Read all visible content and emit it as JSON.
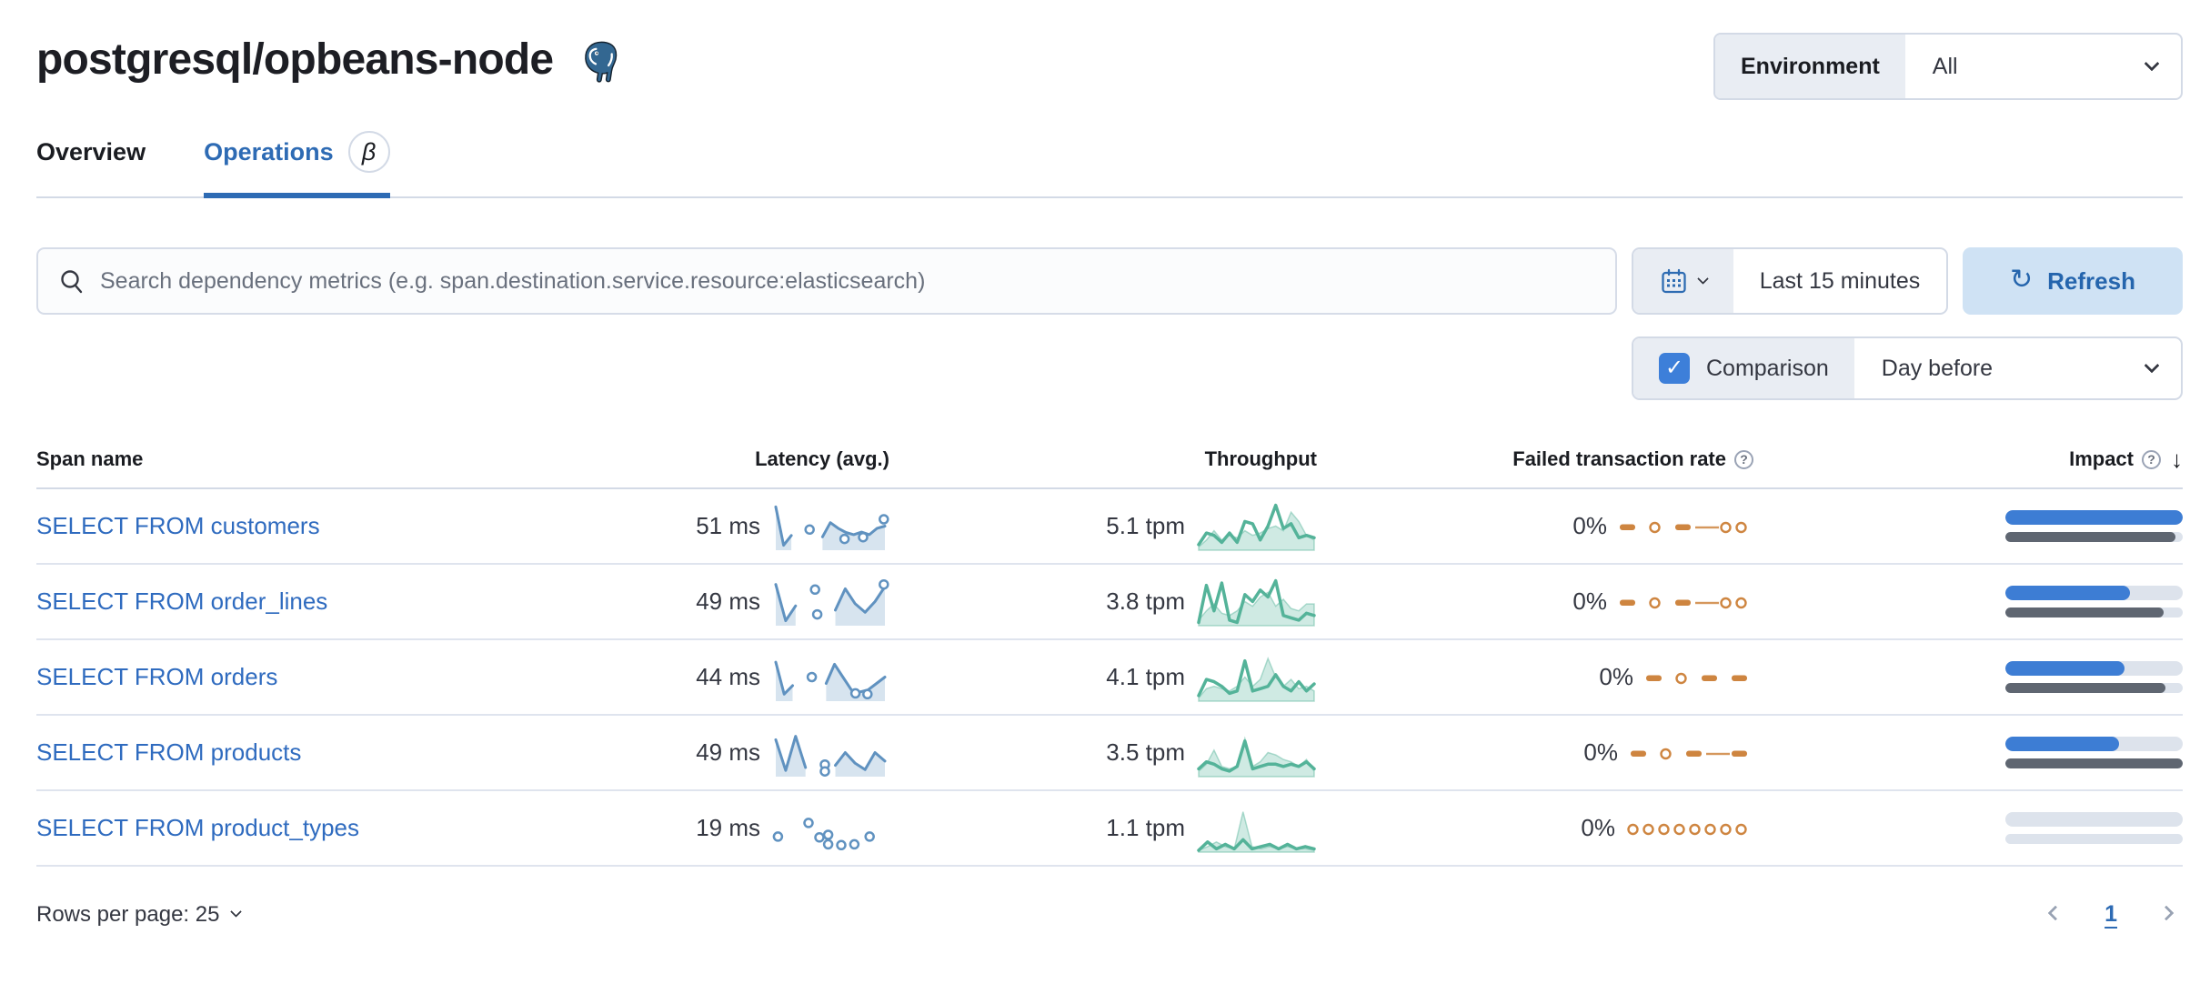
{
  "page": {
    "title": "postgresql/opbeans-node"
  },
  "environment": {
    "label": "Environment",
    "value": "All"
  },
  "tabs": [
    {
      "label": "Overview",
      "active": false
    },
    {
      "label": "Operations",
      "active": true,
      "badge": "β"
    }
  ],
  "controls": {
    "search_placeholder": "Search dependency metrics (e.g. span.destination.service.resource:elasticsearch)",
    "time_range": "Last 15 minutes",
    "refresh_label": "Refresh",
    "refresh_glyph": "↻",
    "comparison_label": "Comparison",
    "comparison_checked": "✓",
    "comparison_value": "Day before"
  },
  "table": {
    "columns": [
      "Span name",
      "Latency (avg.)",
      "Throughput",
      "Failed transaction rate",
      "Impact"
    ],
    "help_glyph": "?",
    "sort_glyph": "↓",
    "rows": [
      {
        "span_name": "SELECT FROM customers",
        "latency": "51 ms",
        "throughput": "5.1 tpm",
        "failed_rate": "0%",
        "latency_spark": {
          "points": [
            0.95,
            0.05,
            0.28,
            null,
            null,
            null,
            0.25,
            0.58,
            0.45,
            0.35,
            0.3,
            0.36,
            0.3,
            0.45,
            0.5
          ],
          "dots": [
            [
              0.31,
              0.42
            ],
            [
              0.63,
              0.2
            ],
            [
              0.8,
              0.24
            ],
            [
              0.99,
              0.66
            ]
          ]
        },
        "throughput_spark": {
          "current": [
            0.1,
            0.35,
            0.3,
            0.15,
            0.35,
            0.15,
            0.6,
            0.55,
            0.2,
            0.5,
            0.95,
            0.45,
            0.55,
            0.25,
            0.3,
            0.25
          ],
          "previous": [
            0.05,
            0.2,
            0.4,
            0.2,
            0.3,
            0.25,
            0.4,
            0.3,
            0.35,
            0.45,
            0.5,
            0.4,
            0.8,
            0.6,
            0.3,
            0.2
          ]
        },
        "failed_spark": [
          "dash",
          "sp",
          "dot",
          "sp",
          "dash",
          "line",
          "dot",
          "dot"
        ],
        "impact": {
          "current": 1.0,
          "previous": 0.96
        }
      },
      {
        "span_name": "SELECT FROM order_lines",
        "latency": "49 ms",
        "throughput": "3.8 tpm",
        "failed_rate": "0%",
        "latency_spark": {
          "points": [
            0.9,
            0.05,
            0.4,
            null,
            null,
            null,
            0.3,
            0.8,
            0.45,
            0.25,
            0.5,
            0.85
          ],
          "dots": [
            [
              0.36,
              0.78
            ],
            [
              0.38,
              0.2
            ],
            [
              0.99,
              0.9
            ]
          ]
        },
        "throughput_spark": {
          "current": [
            0.05,
            0.85,
            0.3,
            0.9,
            0.1,
            0.05,
            0.65,
            0.5,
            0.75,
            0.6,
            0.95,
            0.2,
            0.15,
            0.1,
            0.25,
            0.2
          ],
          "previous": [
            0.1,
            0.3,
            0.45,
            0.25,
            0.2,
            0.3,
            0.5,
            0.4,
            0.6,
            0.7,
            0.4,
            0.55,
            0.35,
            0.3,
            0.45,
            0.45
          ]
        },
        "failed_spark": [
          "dash",
          "sp",
          "dot",
          "sp",
          "dash",
          "line",
          "dot",
          "dot"
        ],
        "impact": {
          "current": 0.7,
          "previous": 0.89
        }
      },
      {
        "span_name": "SELECT FROM orders",
        "latency": "44 ms",
        "throughput": "4.1 tpm",
        "failed_rate": "0%",
        "latency_spark": {
          "points": [
            0.85,
            0.1,
            0.3,
            null,
            null,
            null,
            0.35,
            0.8,
            0.5,
            0.2,
            0.15,
            0.2,
            0.35,
            0.5
          ],
          "dots": [
            [
              0.33,
              0.5
            ],
            [
              0.73,
              0.12
            ],
            [
              0.84,
              0.1
            ]
          ]
        },
        "throughput_spark": {
          "current": [
            0.1,
            0.45,
            0.4,
            0.3,
            0.15,
            0.2,
            0.85,
            0.2,
            0.25,
            0.3,
            0.55,
            0.3,
            0.2,
            0.4,
            0.2,
            0.35
          ],
          "previous": [
            0.05,
            0.25,
            0.3,
            0.25,
            0.2,
            0.3,
            0.5,
            0.3,
            0.45,
            0.9,
            0.5,
            0.3,
            0.45,
            0.25,
            0.3,
            0.2
          ]
        },
        "failed_spark": [
          "dash",
          "sp",
          "dot",
          "sp",
          "dash",
          "sp",
          "dash"
        ],
        "impact": {
          "current": 0.67,
          "previous": 0.9
        }
      },
      {
        "span_name": "SELECT FROM products",
        "latency": "49 ms",
        "throughput": "3.5 tpm",
        "failed_rate": "0%",
        "latency_spark": {
          "points": [
            0.8,
            0.08,
            0.88,
            0.15,
            null,
            null,
            0.2,
            0.5,
            0.25,
            0.1,
            0.5,
            0.3
          ],
          "dots": [
            [
              0.45,
              0.22
            ],
            [
              0.45,
              0.06
            ]
          ]
        },
        "throughput_spark": {
          "current": [
            0.15,
            0.3,
            0.25,
            0.15,
            0.1,
            0.2,
            0.75,
            0.15,
            0.2,
            0.25,
            0.25,
            0.2,
            0.25,
            0.2,
            0.3,
            0.15
          ],
          "previous": [
            0.1,
            0.25,
            0.55,
            0.2,
            0.15,
            0.2,
            0.8,
            0.2,
            0.3,
            0.5,
            0.45,
            0.35,
            0.3,
            0.2,
            0.35,
            0.1
          ]
        },
        "failed_spark": [
          "dash",
          "sp",
          "dot",
          "sp",
          "dash",
          "line",
          "dash"
        ],
        "impact": {
          "current": 0.64,
          "previous": 1.0
        }
      },
      {
        "span_name": "SELECT FROM product_types",
        "latency": "19 ms",
        "throughput": "1.1 tpm",
        "failed_rate": "0%",
        "latency_spark": {
          "points": [],
          "dots": [
            [
              0.02,
              0.3
            ],
            [
              0.3,
              0.62
            ],
            [
              0.4,
              0.28
            ],
            [
              0.48,
              0.34
            ],
            [
              0.48,
              0.12
            ],
            [
              0.6,
              0.1
            ],
            [
              0.72,
              0.12
            ],
            [
              0.86,
              0.3
            ]
          ]
        },
        "throughput_spark": {
          "current": [
            0.02,
            0.2,
            0.05,
            0.15,
            0.05,
            0.25,
            0.05,
            0.1,
            0.15,
            0.05,
            0.15,
            0.05,
            0.1,
            0.05
          ],
          "previous": [
            0.02,
            0.1,
            0.2,
            0.1,
            0.05,
            0.85,
            0.1,
            0.05,
            0.1,
            0.05,
            0.1,
            0.05,
            0.05,
            0.02
          ]
        },
        "failed_spark": [
          "dot",
          "dot",
          "dot",
          "dot",
          "dot",
          "dot",
          "dot",
          "dot"
        ],
        "impact": {
          "current": 0,
          "previous": 0
        }
      }
    ]
  },
  "footer": {
    "rows_per_page": "Rows per page: 25",
    "page": "1"
  },
  "colors": {
    "latency_blue": "#6092C0",
    "throughput_green": "#54B399",
    "failed_orange": "#CE8540",
    "impact_blue": "#3d7dd4",
    "impact_gray": "#5f6671",
    "link_blue": "#2f6bbf",
    "tab_active_blue": "#2e6bb4"
  }
}
